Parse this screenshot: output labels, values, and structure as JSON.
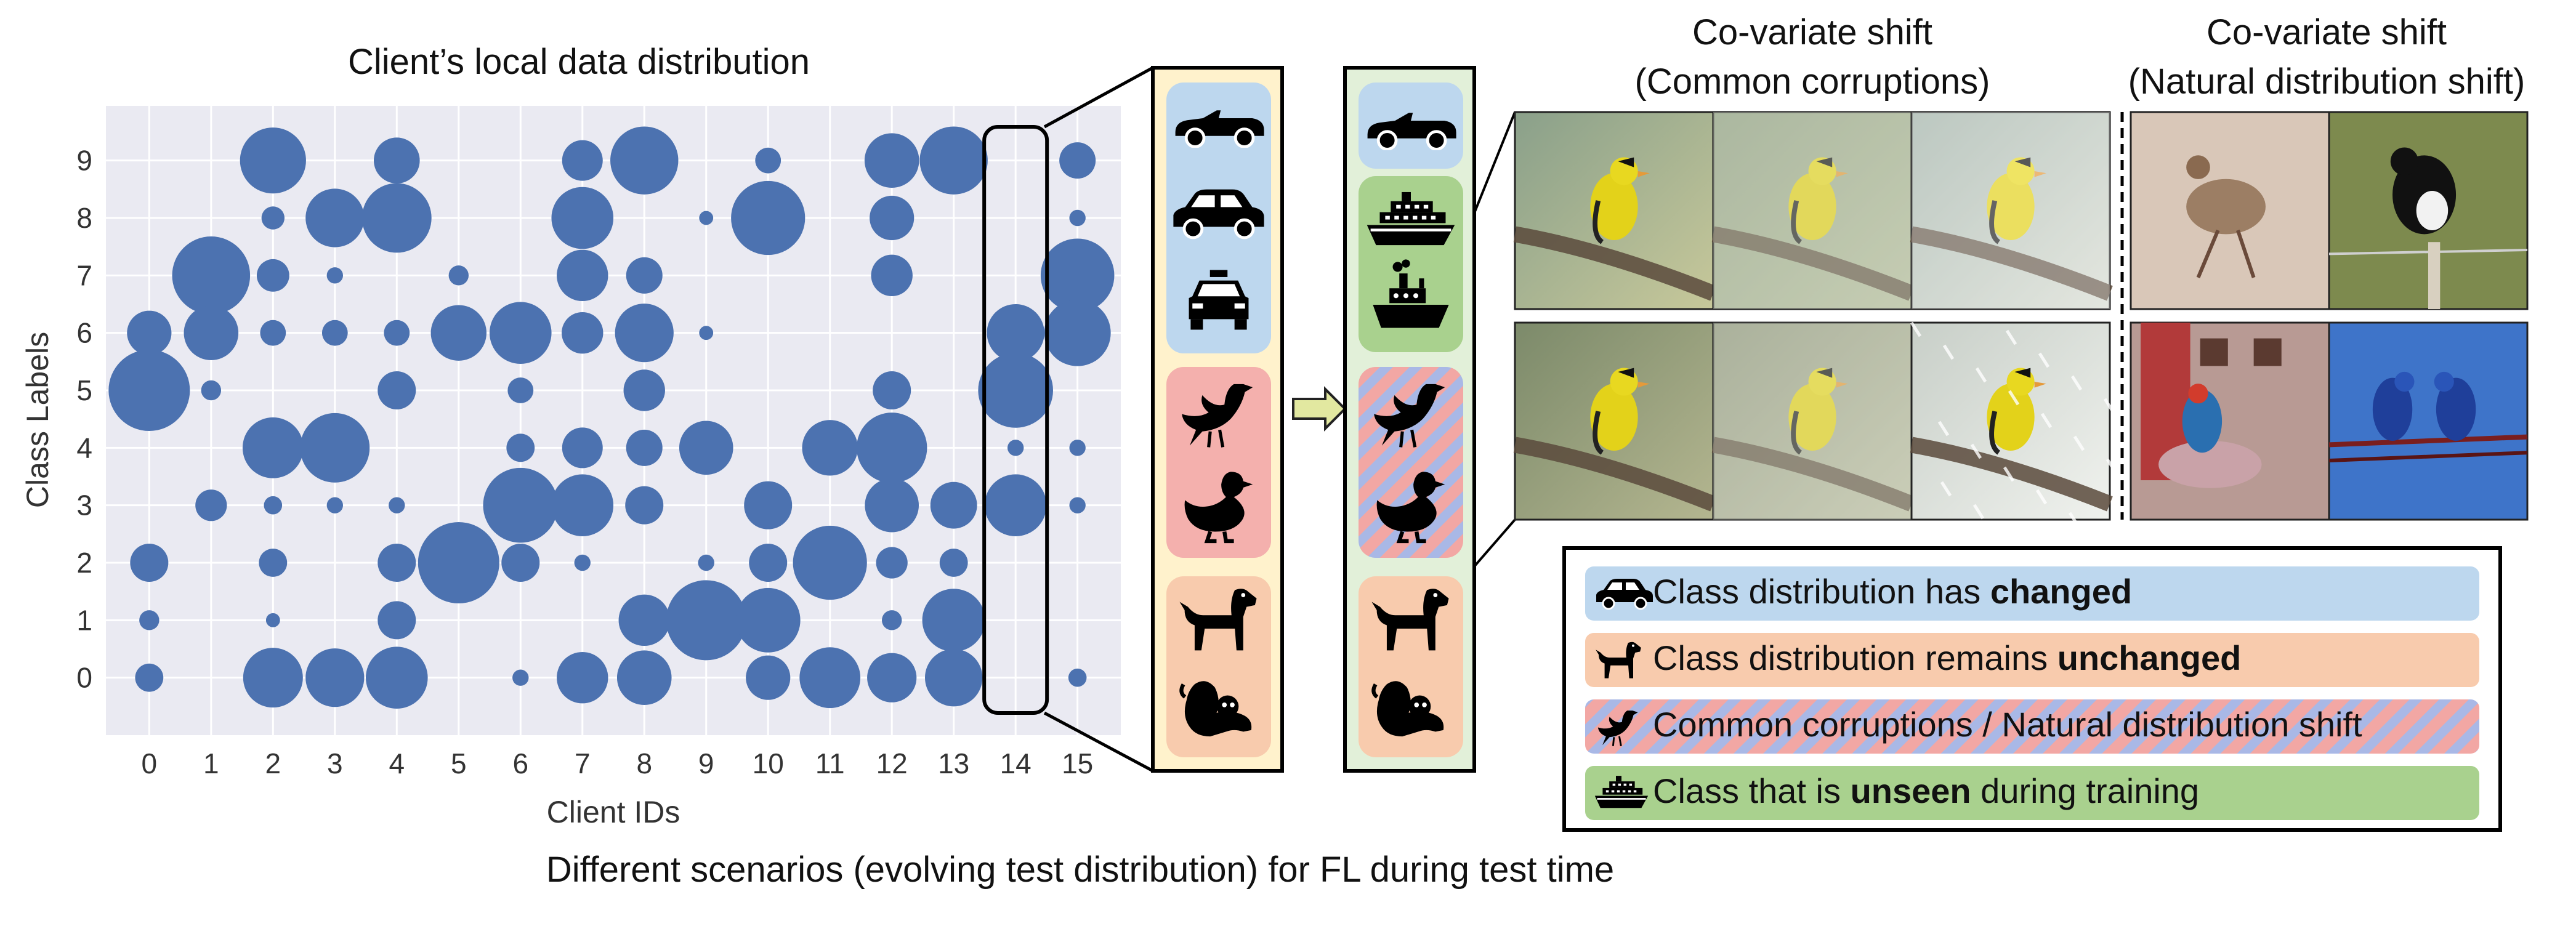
{
  "chart_data": {
    "type": "scatter",
    "title": "Client’s local data distribution",
    "xlabel": "Client IDs",
    "ylabel": "Class Labels",
    "x_ticks": [
      0,
      1,
      2,
      3,
      4,
      5,
      6,
      7,
      8,
      9,
      10,
      11,
      12,
      13,
      14,
      15
    ],
    "y_ticks": [
      0,
      1,
      2,
      3,
      4,
      5,
      6,
      7,
      8,
      9
    ],
    "xlim": [
      -0.7,
      15.7
    ],
    "ylim": [
      -1.0,
      9.95
    ],
    "grid": true,
    "marker_color": "#4c72b0",
    "background_color": "#eaeaf2",
    "highlight_client": 14,
    "points": [
      {
        "x": 0,
        "y": 6,
        "s": 0.3
      },
      {
        "x": 0,
        "y": 5,
        "s": 1.0
      },
      {
        "x": 0,
        "y": 2,
        "s": 0.22
      },
      {
        "x": 0,
        "y": 1,
        "s": 0.06
      },
      {
        "x": 0,
        "y": 0,
        "s": 0.12
      },
      {
        "x": 1,
        "y": 7,
        "s": 0.92
      },
      {
        "x": 1,
        "y": 6,
        "s": 0.45
      },
      {
        "x": 1,
        "y": 5,
        "s": 0.06
      },
      {
        "x": 1,
        "y": 3,
        "s": 0.15
      },
      {
        "x": 2,
        "y": 9,
        "s": 0.66
      },
      {
        "x": 2,
        "y": 8,
        "s": 0.08
      },
      {
        "x": 2,
        "y": 7,
        "s": 0.16
      },
      {
        "x": 2,
        "y": 6,
        "s": 0.1
      },
      {
        "x": 2,
        "y": 4,
        "s": 0.56
      },
      {
        "x": 2,
        "y": 3,
        "s": 0.05
      },
      {
        "x": 2,
        "y": 2,
        "s": 0.12
      },
      {
        "x": 2,
        "y": 1,
        "s": 0.03
      },
      {
        "x": 2,
        "y": 0,
        "s": 0.54
      },
      {
        "x": 3,
        "y": 8,
        "s": 0.52
      },
      {
        "x": 3,
        "y": 7,
        "s": 0.04
      },
      {
        "x": 3,
        "y": 6,
        "s": 0.1
      },
      {
        "x": 3,
        "y": 4,
        "s": 0.73
      },
      {
        "x": 3,
        "y": 3,
        "s": 0.04
      },
      {
        "x": 3,
        "y": 0,
        "s": 0.52
      },
      {
        "x": 4,
        "y": 9,
        "s": 0.32
      },
      {
        "x": 4,
        "y": 8,
        "s": 0.73
      },
      {
        "x": 4,
        "y": 6,
        "s": 0.1
      },
      {
        "x": 4,
        "y": 5,
        "s": 0.22
      },
      {
        "x": 4,
        "y": 3,
        "s": 0.04
      },
      {
        "x": 4,
        "y": 2,
        "s": 0.22
      },
      {
        "x": 4,
        "y": 1,
        "s": 0.22
      },
      {
        "x": 4,
        "y": 0,
        "s": 0.58
      },
      {
        "x": 5,
        "y": 7,
        "s": 0.06
      },
      {
        "x": 5,
        "y": 6,
        "s": 0.47
      },
      {
        "x": 5,
        "y": 2,
        "s": 1.0
      },
      {
        "x": 6,
        "y": 6,
        "s": 0.58
      },
      {
        "x": 6,
        "y": 5,
        "s": 0.1
      },
      {
        "x": 6,
        "y": 4,
        "s": 0.12
      },
      {
        "x": 6,
        "y": 3,
        "s": 0.85
      },
      {
        "x": 6,
        "y": 2,
        "s": 0.22
      },
      {
        "x": 6,
        "y": 0,
        "s": 0.04
      },
      {
        "x": 7,
        "y": 9,
        "s": 0.25
      },
      {
        "x": 7,
        "y": 8,
        "s": 0.58
      },
      {
        "x": 7,
        "y": 7,
        "s": 0.4
      },
      {
        "x": 7,
        "y": 6,
        "s": 0.26
      },
      {
        "x": 7,
        "y": 4,
        "s": 0.25
      },
      {
        "x": 7,
        "y": 3,
        "s": 0.58
      },
      {
        "x": 7,
        "y": 2,
        "s": 0.04
      },
      {
        "x": 7,
        "y": 0,
        "s": 0.4
      },
      {
        "x": 8,
        "y": 9,
        "s": 0.7
      },
      {
        "x": 8,
        "y": 7,
        "s": 0.2
      },
      {
        "x": 8,
        "y": 6,
        "s": 0.52
      },
      {
        "x": 8,
        "y": 5,
        "s": 0.26
      },
      {
        "x": 8,
        "y": 4,
        "s": 0.2
      },
      {
        "x": 8,
        "y": 3,
        "s": 0.22
      },
      {
        "x": 8,
        "y": 1,
        "s": 0.4
      },
      {
        "x": 8,
        "y": 0,
        "s": 0.45
      },
      {
        "x": 9,
        "y": 8,
        "s": 0.03
      },
      {
        "x": 9,
        "y": 6,
        "s": 0.03
      },
      {
        "x": 9,
        "y": 4,
        "s": 0.44
      },
      {
        "x": 9,
        "y": 2,
        "s": 0.04
      },
      {
        "x": 9,
        "y": 1,
        "s": 0.97
      },
      {
        "x": 10,
        "y": 9,
        "s": 0.1
      },
      {
        "x": 10,
        "y": 8,
        "s": 0.83
      },
      {
        "x": 10,
        "y": 3,
        "s": 0.35
      },
      {
        "x": 10,
        "y": 2,
        "s": 0.22
      },
      {
        "x": 10,
        "y": 1,
        "s": 0.63
      },
      {
        "x": 10,
        "y": 0,
        "s": 0.3
      },
      {
        "x": 11,
        "y": 4,
        "s": 0.47
      },
      {
        "x": 11,
        "y": 2,
        "s": 0.83
      },
      {
        "x": 11,
        "y": 0,
        "s": 0.56
      },
      {
        "x": 12,
        "y": 9,
        "s": 0.45
      },
      {
        "x": 12,
        "y": 8,
        "s": 0.3
      },
      {
        "x": 12,
        "y": 7,
        "s": 0.26
      },
      {
        "x": 12,
        "y": 5,
        "s": 0.22
      },
      {
        "x": 12,
        "y": 4,
        "s": 0.75
      },
      {
        "x": 12,
        "y": 3,
        "s": 0.44
      },
      {
        "x": 12,
        "y": 2,
        "s": 0.15
      },
      {
        "x": 12,
        "y": 1,
        "s": 0.06
      },
      {
        "x": 12,
        "y": 0,
        "s": 0.37
      },
      {
        "x": 13,
        "y": 9,
        "s": 0.7
      },
      {
        "x": 13,
        "y": 3,
        "s": 0.33
      },
      {
        "x": 13,
        "y": 2,
        "s": 0.12
      },
      {
        "x": 13,
        "y": 1,
        "s": 0.6
      },
      {
        "x": 13,
        "y": 0,
        "s": 0.5
      },
      {
        "x": 14,
        "y": 6,
        "s": 0.5
      },
      {
        "x": 14,
        "y": 5,
        "s": 0.85
      },
      {
        "x": 14,
        "y": 4,
        "s": 0.04
      },
      {
        "x": 14,
        "y": 3,
        "s": 0.58
      },
      {
        "x": 15,
        "y": 9,
        "s": 0.2
      },
      {
        "x": 15,
        "y": 8,
        "s": 0.04
      },
      {
        "x": 15,
        "y": 7,
        "s": 0.82
      },
      {
        "x": 15,
        "y": 6,
        "s": 0.67
      },
      {
        "x": 15,
        "y": 4,
        "s": 0.04
      },
      {
        "x": 15,
        "y": 3,
        "s": 0.04
      },
      {
        "x": 15,
        "y": 0,
        "s": 0.05
      }
    ]
  },
  "panels": {
    "train": {
      "background": "#fff2cc",
      "groups": [
        {
          "color": "#bdd7ee",
          "icons": [
            "convertible-car-icon",
            "sedan-car-icon",
            "taxi-icon"
          ]
        },
        {
          "color": "#f4b0ad",
          "icons": [
            "bird-icon",
            "duck-icon"
          ]
        },
        {
          "color": "#f8cbad",
          "icons": [
            "dog-icon",
            "puppy-icon"
          ]
        }
      ]
    },
    "test": {
      "background": "#e2f0d9",
      "groups": [
        {
          "color": "#bdd7ee",
          "icons": [
            "convertible-car-icon"
          ]
        },
        {
          "color": "#a9d18e",
          "icons": [
            "cruise-ship-icon",
            "steamboat-icon"
          ]
        },
        {
          "color": "striped",
          "icons": [
            "bird-icon",
            "duck-icon"
          ]
        },
        {
          "color": "#f8cbad",
          "icons": [
            "dog-icon",
            "puppy-icon"
          ]
        }
      ]
    },
    "arrow_color": "#e2e8a0"
  },
  "photos": {
    "corruptions_title_line1": "Co-variate shift",
    "corruptions_title_line2": "(Common corruptions)",
    "natural_title_line1": "Co-variate shift",
    "natural_title_line2": "(Natural distribution shift)",
    "corrupted_images": [
      "goldfinch-gaussian-noise",
      "goldfinch-fog",
      "goldfinch-frost",
      "goldfinch-defocus-blur",
      "goldfinch-contrast",
      "goldfinch-snow"
    ],
    "natural_images": [
      "quail-photo",
      "magpie-photo",
      "parrot-painting",
      "macaws-photo"
    ]
  },
  "legend": {
    "items": [
      {
        "icon": "car-icon",
        "text_before": "Class distribution has ",
        "text_bold": "changed",
        "text_after": "",
        "color": "#bdd7ee"
      },
      {
        "icon": "dog-icon",
        "text_before": "Class distribution remains ",
        "text_bold": "unchanged",
        "text_after": "",
        "color": "#f8cbad"
      },
      {
        "icon": "bird-icon",
        "text_before": " Common corruptions / Natural distribution shift",
        "text_bold": "",
        "text_after": "",
        "color": "striped"
      },
      {
        "icon": "ship-icon",
        "text_before": "Class that is ",
        "text_bold": "unseen",
        "text_after": " during training",
        "color": "#a9d18e"
      }
    ]
  },
  "caption": "Different scenarios (evolving test distribution) for FL during test time"
}
